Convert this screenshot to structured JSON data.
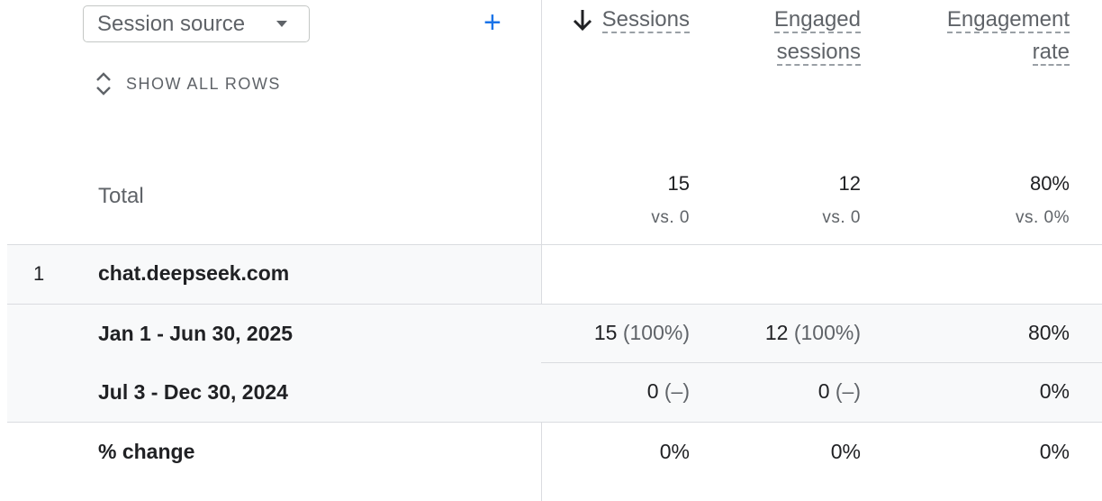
{
  "dimension": {
    "select_label": "Session source",
    "show_all_rows": "SHOW ALL ROWS"
  },
  "columns": [
    {
      "line1": "Sessions",
      "line2": "",
      "sorted": true
    },
    {
      "line1": "Engaged",
      "line2": "sessions",
      "sorted": false
    },
    {
      "line1": "Engagement",
      "line2": "rate",
      "sorted": false
    }
  ],
  "total": {
    "label": "Total",
    "values": [
      "15",
      "12",
      "80%"
    ],
    "compare": [
      "vs. 0",
      "vs. 0",
      "vs. 0%"
    ]
  },
  "rows": [
    {
      "index": "1",
      "name": "chat.deepseek.com",
      "periods": [
        {
          "label": "Jan 1 - Jun 30, 2025",
          "cells": [
            [
              "15",
              "(100%)"
            ],
            [
              "12",
              "(100%)"
            ],
            [
              "80%",
              ""
            ]
          ]
        },
        {
          "label": "Jul 3 - Dec 30, 2024",
          "cells": [
            [
              "0",
              "(–)"
            ],
            [
              "0",
              "(–)"
            ],
            [
              "0%",
              ""
            ]
          ]
        }
      ],
      "change": {
        "label": "% change",
        "cells": [
          "0%",
          "0%",
          "0%"
        ]
      }
    }
  ],
  "colors": {
    "accent": "#1a73e8",
    "divider": "#dadce0",
    "row_bg": "#f8f9fa"
  }
}
